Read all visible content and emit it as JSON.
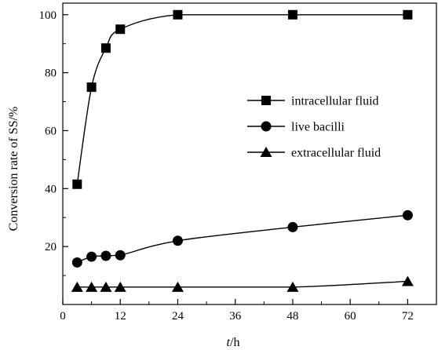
{
  "chart_data": {
    "type": "line",
    "title": "",
    "xlabel": "t/h",
    "xlabel_var": "t",
    "xlabel_unit": "/h",
    "ylabel": "Conversion rate of SS/%",
    "xlim": [
      0,
      78
    ],
    "ylim": [
      0,
      104
    ],
    "xticks": [
      0,
      12,
      24,
      36,
      48,
      60,
      72
    ],
    "yticks": [
      20,
      40,
      60,
      80,
      100
    ],
    "grid": false,
    "legend_position": "right",
    "series": [
      {
        "name": "intracellular fluid",
        "marker": "square",
        "x": [
          3,
          6,
          9,
          12,
          24,
          48,
          72
        ],
        "y": [
          41.5,
          75,
          88.5,
          95,
          100,
          100,
          100
        ]
      },
      {
        "name": "live bacilli",
        "marker": "circle",
        "x": [
          3,
          6,
          9,
          12,
          24,
          48,
          72
        ],
        "y": [
          14.5,
          16.5,
          16.8,
          17,
          22,
          26.7,
          30.8
        ]
      },
      {
        "name": "extracellular fluid",
        "marker": "triangle",
        "x": [
          3,
          6,
          9,
          12,
          24,
          48,
          72
        ],
        "y": [
          6,
          6,
          6,
          6,
          6,
          6,
          8
        ]
      }
    ]
  }
}
